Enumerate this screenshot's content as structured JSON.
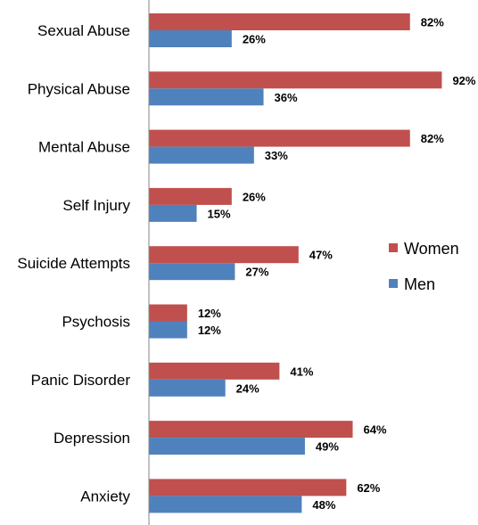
{
  "chart_data": {
    "type": "bar",
    "orientation": "horizontal",
    "categories": [
      "Sexual Abuse",
      "Physical Abuse",
      "Mental Abuse",
      "Self Injury",
      "Suicide Attempts",
      "Psychosis",
      "Panic Disorder",
      "Depression",
      "Anxiety"
    ],
    "series": [
      {
        "name": "Women",
        "color": "#C0504D",
        "values": [
          82,
          92,
          82,
          26,
          47,
          12,
          41,
          64,
          62
        ],
        "labels": [
          "82%",
          "92%",
          "82%",
          "26%",
          "47%",
          "12%",
          "41%",
          "64%",
          "62%"
        ]
      },
      {
        "name": "Men",
        "color": "#4F81BD",
        "values": [
          26,
          36,
          33,
          15,
          27,
          12,
          24,
          49,
          48
        ],
        "labels": [
          "26%",
          "36%",
          "33%",
          "15%",
          "27%",
          "12%",
          "24%",
          "49%",
          "48%"
        ]
      }
    ],
    "xlim": [
      0,
      100
    ],
    "value_suffix": "%",
    "grid": false,
    "legend_position": "right"
  }
}
